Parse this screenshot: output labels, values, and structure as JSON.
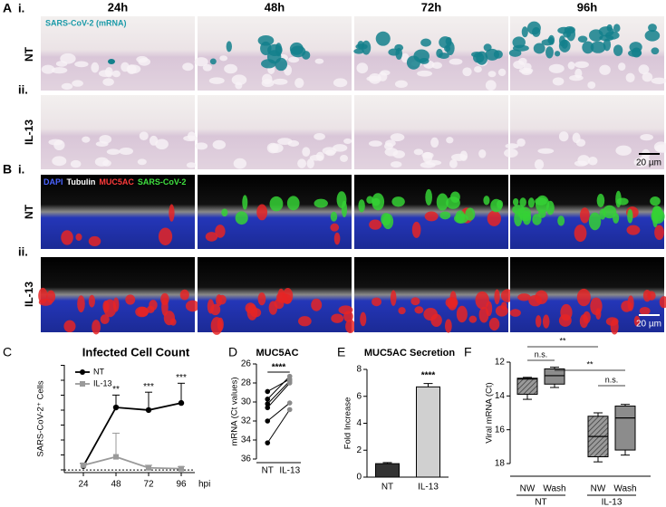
{
  "figure": {
    "panel_a": {
      "label": "A",
      "row_labels": [
        "i.",
        "ii."
      ],
      "conditions": [
        "NT",
        "IL-13"
      ],
      "timepoints": [
        "24h",
        "48h",
        "72h",
        "96h"
      ],
      "stain": "SARS-CoV-2 (mRNA)",
      "scale_bar": "20 µm"
    },
    "panel_b": {
      "label": "B",
      "row_labels": [
        "i.",
        "ii."
      ],
      "conditions": [
        "NT",
        "IL-13"
      ],
      "stains": [
        {
          "name": "DAPI",
          "color": "#4a63ff"
        },
        {
          "name": "Tubulin",
          "color": "#ffffff"
        },
        {
          "name": "MUC5AC",
          "color": "#ff3b3b"
        },
        {
          "name": "SARS-CoV-2",
          "color": "#3fe03f"
        }
      ],
      "scale_bar": "20 µm"
    }
  },
  "chart_data": [
    {
      "label": "C",
      "type": "line",
      "title": "Infected Cell Count",
      "y_label": "SARS-CoV-2⁺ Cells",
      "x_unit": "hpi",
      "x": [
        24,
        48,
        72,
        96
      ],
      "xlim": [
        10,
        106
      ],
      "xticks": [
        24,
        48,
        72,
        96
      ],
      "ylim": [
        -10,
        400
      ],
      "legend": "upper left",
      "series": [
        {
          "name": "NT",
          "color": "#000000",
          "values": [
            15,
            238,
            228,
            255
          ],
          "errors": [
            10,
            47,
            68,
            75
          ]
        },
        {
          "name": "IL-13",
          "color": "#9a9a9a",
          "values": [
            18,
            50,
            8,
            5
          ],
          "errors": [
            8,
            90,
            10,
            8
          ]
        }
      ],
      "significance": [
        null,
        "**",
        "***",
        "***"
      ]
    },
    {
      "label": "D",
      "type": "paired",
      "title": "MUC5AC",
      "y_label": "mRNA (Ct values)",
      "categories": [
        "NT",
        "IL-13"
      ],
      "colors": [
        "#000000",
        "#8a8a8a"
      ],
      "values": [
        [
          28.9,
          29.7,
          30.2,
          30.6,
          32.0,
          34.3
        ],
        [
          27.6,
          27.3,
          27.8,
          28.0,
          30.1,
          30.8
        ]
      ],
      "ylim": [
        26,
        36
      ],
      "yticks": [
        26,
        28,
        30,
        32,
        34,
        36
      ],
      "inverted": true,
      "significance": "****"
    },
    {
      "label": "E",
      "type": "bar",
      "title": "MUC5AC Secretion",
      "y_label": "Fold Increase",
      "categories": [
        "NT",
        "IL-13"
      ],
      "values": [
        1,
        6.7
      ],
      "errors": [
        0.08,
        0.25
      ],
      "colors": [
        "#333333",
        "#d0d0d0"
      ],
      "ylim": [
        0,
        8
      ],
      "yticks": [
        0,
        2,
        4,
        6,
        8
      ],
      "significance": [
        null,
        "****"
      ]
    },
    {
      "label": "F",
      "type": "box",
      "y_label": "Viral mRNA (Ct)",
      "ylim": [
        12,
        18
      ],
      "yticks": [
        12,
        14,
        16,
        18
      ],
      "inverted": true,
      "groups": [
        {
          "name": "NT",
          "boxes": [
            {
              "label": "NW",
              "hatch": true,
              "min": 12.9,
              "q1": 12.95,
              "median": 13.0,
              "q3": 13.9,
              "max": 14.2
            },
            {
              "label": "Wash",
              "hatch": false,
              "min": 12.3,
              "q1": 12.4,
              "median": 12.8,
              "q3": 13.3,
              "max": 13.5
            }
          ]
        },
        {
          "name": "IL-13",
          "boxes": [
            {
              "label": "NW",
              "hatch": true,
              "min": 15.0,
              "q1": 15.2,
              "median": 16.4,
              "q3": 17.6,
              "max": 17.9
            },
            {
              "label": "Wash",
              "hatch": false,
              "min": 14.5,
              "q1": 14.6,
              "median": 15.3,
              "q3": 17.2,
              "max": 17.5
            }
          ]
        }
      ],
      "color": "#8c8c8c",
      "comparisons": [
        "**",
        "n.s.",
        "**",
        "n.s."
      ]
    }
  ]
}
